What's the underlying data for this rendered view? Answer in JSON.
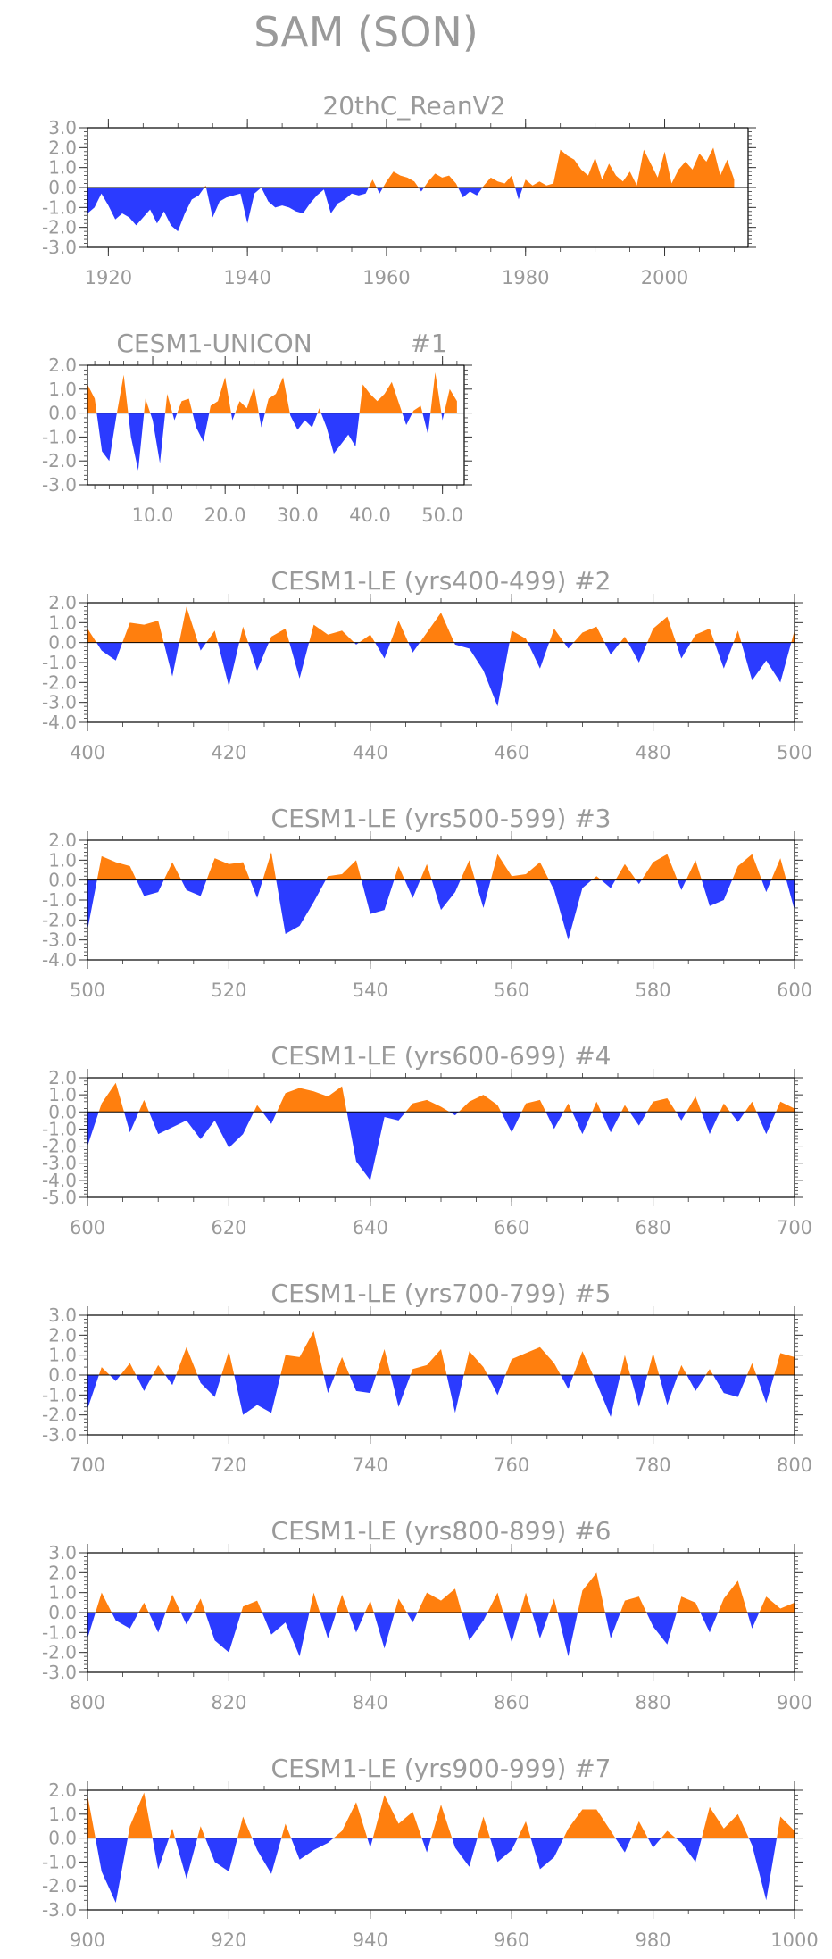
{
  "title": "SAM (SON)",
  "colors": {
    "positive": "#ff7f0e",
    "negative": "#2b3bff",
    "text": "#9a9a9a",
    "axis": "#333333",
    "frame": "#000000"
  },
  "chart_data": [
    {
      "type": "area",
      "title": "20thC_ReanV2",
      "xlim": [
        1917,
        2012
      ],
      "ylim": [
        -3.0,
        3.0
      ],
      "yticks": [
        "3.0",
        "2.0",
        "1.0",
        "0.0",
        "-1.0",
        "-2.0",
        "-3.0"
      ],
      "ytick_values": [
        3,
        2,
        1,
        0,
        -1,
        -2,
        -3
      ],
      "xticks": [
        "1920",
        "1940",
        "1960",
        "1980",
        "2000"
      ],
      "xtick_values": [
        1920,
        1940,
        1960,
        1980,
        2000
      ],
      "x": [
        1917,
        1918,
        1919,
        1920,
        1921,
        1922,
        1923,
        1924,
        1925,
        1926,
        1927,
        1928,
        1929,
        1930,
        1931,
        1932,
        1933,
        1934,
        1935,
        1936,
        1937,
        1938,
        1939,
        1940,
        1941,
        1942,
        1943,
        1944,
        1945,
        1946,
        1947,
        1948,
        1949,
        1950,
        1951,
        1952,
        1953,
        1954,
        1955,
        1956,
        1957,
        1958,
        1959,
        1960,
        1961,
        1962,
        1963,
        1964,
        1965,
        1966,
        1967,
        1968,
        1969,
        1970,
        1971,
        1972,
        1973,
        1974,
        1975,
        1976,
        1977,
        1978,
        1979,
        1980,
        1981,
        1982,
        1983,
        1984,
        1985,
        1986,
        1987,
        1988,
        1989,
        1990,
        1991,
        1992,
        1993,
        1994,
        1995,
        1996,
        1997,
        1998,
        1999,
        2000,
        2001,
        2002,
        2003,
        2004,
        2005,
        2006,
        2007,
        2008,
        2009,
        2010
      ],
      "y": [
        -1.3,
        -1.0,
        -0.3,
        -0.9,
        -1.6,
        -1.3,
        -1.5,
        -1.9,
        -1.5,
        -1.1,
        -1.8,
        -1.2,
        -1.9,
        -2.2,
        -1.3,
        -0.6,
        -0.4,
        0.1,
        -1.5,
        -0.7,
        -0.5,
        -0.4,
        -0.3,
        -1.8,
        -0.3,
        0.0,
        -0.7,
        -1.0,
        -0.9,
        -1.0,
        -1.2,
        -1.3,
        -0.8,
        -0.4,
        -0.1,
        -1.3,
        -0.8,
        -0.6,
        -0.3,
        -0.4,
        -0.3,
        0.4,
        -0.3,
        0.3,
        0.8,
        0.6,
        0.5,
        0.3,
        -0.2,
        0.3,
        0.7,
        0.5,
        0.6,
        0.2,
        -0.5,
        -0.2,
        -0.4,
        0.1,
        0.5,
        0.3,
        0.2,
        0.6,
        -0.6,
        0.4,
        0.1,
        0.3,
        0.1,
        0.2,
        1.9,
        1.6,
        1.4,
        0.9,
        0.6,
        1.5,
        0.4,
        1.2,
        0.6,
        0.3,
        0.8,
        0.1,
        1.9,
        1.2,
        0.5,
        1.8,
        0.2,
        0.9,
        1.3,
        0.9,
        1.7,
        1.3,
        2.0,
        0.6,
        1.4,
        0.4
      ]
    },
    {
      "type": "area",
      "title": "CESM1-UNICON",
      "run_label": "#1",
      "xlim": [
        1,
        53
      ],
      "ylim": [
        -3.0,
        2.0
      ],
      "yticks": [
        "2.0",
        "1.0",
        "0.0",
        "-1.0",
        "-2.0",
        "-3.0"
      ],
      "ytick_values": [
        2,
        1,
        0,
        -1,
        -2,
        -3
      ],
      "xticks": [
        "10.0",
        "20.0",
        "30.0",
        "40.0",
        "50.0"
      ],
      "xtick_values": [
        10,
        20,
        30,
        40,
        50
      ],
      "x": [
        1,
        2,
        3,
        4,
        5,
        6,
        7,
        8,
        9,
        10,
        11,
        12,
        13,
        14,
        15,
        16,
        17,
        18,
        19,
        20,
        21,
        22,
        23,
        24,
        25,
        26,
        27,
        28,
        29,
        30,
        31,
        32,
        33,
        34,
        35,
        36,
        37,
        38,
        39,
        40,
        41,
        42,
        43,
        44,
        45,
        46,
        47,
        48,
        49,
        50,
        51,
        52
      ],
      "y": [
        1.2,
        0.6,
        -1.6,
        -2.0,
        -0.1,
        1.6,
        -1.0,
        -2.4,
        0.6,
        -0.3,
        -2.1,
        0.8,
        -0.3,
        0.5,
        0.6,
        -0.6,
        -1.2,
        0.3,
        0.5,
        1.5,
        -0.3,
        0.5,
        0.2,
        1.1,
        -0.6,
        0.6,
        0.8,
        1.5,
        -0.1,
        -0.7,
        -0.3,
        -0.6,
        0.2,
        -0.6,
        -1.7,
        -1.3,
        -0.9,
        -1.4,
        1.2,
        0.8,
        0.5,
        0.8,
        1.3,
        0.4,
        -0.5,
        0.1,
        0.3,
        -0.9,
        1.7,
        -0.3,
        1.0,
        0.5
      ]
    },
    {
      "type": "area",
      "title": "CESM1-LE (yrs400-499)",
      "run_label": "#2",
      "xlim": [
        400,
        500
      ],
      "ylim": [
        -4.0,
        2.0
      ],
      "yticks": [
        "2.0",
        "1.0",
        "0.0",
        "-1.0",
        "-2.0",
        "-3.0",
        "-4.0"
      ],
      "ytick_values": [
        2,
        1,
        0,
        -1,
        -2,
        -3,
        -4
      ],
      "xticks": [
        "400",
        "420",
        "440",
        "460",
        "480",
        "500"
      ],
      "xtick_values": [
        400,
        420,
        440,
        460,
        480,
        500
      ],
      "x": [
        400,
        402,
        404,
        406,
        408,
        410,
        412,
        414,
        416,
        418,
        420,
        422,
        424,
        426,
        428,
        430,
        432,
        434,
        436,
        438,
        440,
        442,
        444,
        446,
        448,
        450,
        452,
        454,
        456,
        458,
        460,
        462,
        464,
        466,
        468,
        470,
        472,
        474,
        476,
        478,
        480,
        482,
        484,
        486,
        488,
        490,
        492,
        494,
        496,
        498,
        500
      ],
      "y": [
        0.7,
        -0.4,
        -0.9,
        1.0,
        0.9,
        1.1,
        -1.7,
        1.8,
        -0.4,
        0.6,
        -2.2,
        0.8,
        -1.4,
        0.3,
        0.7,
        -1.8,
        0.9,
        0.4,
        0.6,
        -0.1,
        0.4,
        -0.8,
        1.1,
        -0.5,
        0.5,
        1.5,
        -0.1,
        -0.3,
        -1.4,
        -3.2,
        0.6,
        0.2,
        -1.3,
        0.7,
        -0.3,
        0.5,
        0.8,
        -0.6,
        0.3,
        -1.0,
        0.7,
        1.3,
        -0.8,
        0.4,
        0.7,
        -1.3,
        0.6,
        -1.9,
        -0.9,
        -2.0,
        0.6
      ]
    },
    {
      "type": "area",
      "title": "CESM1-LE (yrs500-599)",
      "run_label": "#3",
      "xlim": [
        500,
        600
      ],
      "ylim": [
        -4.0,
        2.0
      ],
      "yticks": [
        "2.0",
        "1.0",
        "0.0",
        "-1.0",
        "-2.0",
        "-3.0",
        "-4.0"
      ],
      "ytick_values": [
        2,
        1,
        0,
        -1,
        -2,
        -3,
        -4
      ],
      "xticks": [
        "500",
        "520",
        "540",
        "560",
        "580",
        "600"
      ],
      "xtick_values": [
        500,
        520,
        540,
        560,
        580,
        600
      ],
      "x": [
        500,
        502,
        504,
        506,
        508,
        510,
        512,
        514,
        516,
        518,
        520,
        522,
        524,
        526,
        528,
        530,
        532,
        534,
        536,
        538,
        540,
        542,
        544,
        546,
        548,
        550,
        552,
        554,
        556,
        558,
        560,
        562,
        564,
        566,
        568,
        570,
        572,
        574,
        576,
        578,
        580,
        582,
        584,
        586,
        588,
        590,
        592,
        594,
        596,
        598,
        600
      ],
      "y": [
        -2.5,
        1.2,
        0.9,
        0.7,
        -0.8,
        -0.6,
        0.9,
        -0.5,
        -0.8,
        1.1,
        0.8,
        0.9,
        -0.9,
        1.4,
        -2.7,
        -2.3,
        -1.1,
        0.2,
        0.3,
        1.0,
        -1.7,
        -1.5,
        0.7,
        -0.9,
        0.8,
        -1.5,
        -0.6,
        1.0,
        -1.4,
        1.3,
        0.2,
        0.3,
        0.9,
        -0.5,
        -3.0,
        -0.4,
        0.2,
        -0.4,
        0.8,
        -0.2,
        0.9,
        1.3,
        -0.5,
        1.0,
        -1.3,
        -1.0,
        0.7,
        1.3,
        -0.6,
        1.1,
        -1.5
      ]
    },
    {
      "type": "area",
      "title": "CESM1-LE (yrs600-699)",
      "run_label": "#4",
      "xlim": [
        600,
        700
      ],
      "ylim": [
        -5.0,
        2.0
      ],
      "yticks": [
        "2.0",
        "1.0",
        "0.0",
        "-1.0",
        "-2.0",
        "-3.0",
        "-4.0",
        "-5.0"
      ],
      "ytick_values": [
        2,
        1,
        0,
        -1,
        -2,
        -3,
        -4,
        -5
      ],
      "xticks": [
        "600",
        "620",
        "640",
        "660",
        "680",
        "700"
      ],
      "xtick_values": [
        600,
        620,
        640,
        660,
        680,
        700
      ],
      "x": [
        600,
        602,
        604,
        606,
        608,
        610,
        612,
        614,
        616,
        618,
        620,
        622,
        624,
        626,
        628,
        630,
        632,
        634,
        636,
        638,
        640,
        642,
        644,
        646,
        648,
        650,
        652,
        654,
        656,
        658,
        660,
        662,
        664,
        666,
        668,
        670,
        672,
        674,
        676,
        678,
        680,
        682,
        684,
        686,
        688,
        690,
        692,
        694,
        696,
        698,
        700
      ],
      "y": [
        -2.0,
        0.5,
        1.7,
        -1.2,
        0.7,
        -1.3,
        -0.9,
        -0.5,
        -1.6,
        -0.5,
        -2.1,
        -1.3,
        0.4,
        -0.7,
        1.1,
        1.4,
        1.2,
        0.9,
        1.5,
        -2.9,
        -4.0,
        -0.3,
        -0.5,
        0.5,
        0.7,
        0.3,
        -0.2,
        0.6,
        1.0,
        0.4,
        -1.2,
        0.5,
        0.7,
        -1.0,
        0.5,
        -1.3,
        0.6,
        -1.2,
        0.4,
        -0.8,
        0.6,
        0.8,
        -0.5,
        0.9,
        -1.3,
        0.5,
        -0.6,
        0.6,
        -1.3,
        0.6,
        0.2
      ]
    },
    {
      "type": "area",
      "title": "CESM1-LE (yrs700-799)",
      "run_label": "#5",
      "xlim": [
        700,
        800
      ],
      "ylim": [
        -3.0,
        3.0
      ],
      "yticks": [
        "3.0",
        "2.0",
        "1.0",
        "0.0",
        "-1.0",
        "-2.0",
        "-3.0"
      ],
      "ytick_values": [
        3,
        2,
        1,
        0,
        -1,
        -2,
        -3
      ],
      "xticks": [
        "700",
        "720",
        "740",
        "760",
        "780",
        "800"
      ],
      "xtick_values": [
        700,
        720,
        740,
        760,
        780,
        800
      ],
      "x": [
        700,
        702,
        704,
        706,
        708,
        710,
        712,
        714,
        716,
        718,
        720,
        722,
        724,
        726,
        728,
        730,
        732,
        734,
        736,
        738,
        740,
        742,
        744,
        746,
        748,
        750,
        752,
        754,
        756,
        758,
        760,
        762,
        764,
        766,
        768,
        770,
        772,
        774,
        776,
        778,
        780,
        782,
        784,
        786,
        788,
        790,
        792,
        794,
        796,
        798,
        800
      ],
      "y": [
        -1.7,
        0.4,
        -0.3,
        0.6,
        -0.8,
        0.5,
        -0.5,
        1.4,
        -0.4,
        -1.1,
        1.2,
        -2.0,
        -1.5,
        -1.9,
        1.0,
        0.9,
        2.2,
        -0.9,
        0.9,
        -0.8,
        -0.9,
        1.3,
        -1.6,
        0.3,
        0.5,
        1.3,
        -1.9,
        1.2,
        0.4,
        -1.0,
        0.8,
        1.1,
        1.4,
        0.6,
        -0.7,
        1.2,
        -0.4,
        -2.1,
        1.0,
        -1.6,
        1.1,
        -1.5,
        0.5,
        -0.8,
        0.3,
        -0.9,
        -1.1,
        0.6,
        -1.4,
        1.1,
        0.9
      ]
    },
    {
      "type": "area",
      "title": "CESM1-LE (yrs800-899)",
      "run_label": "#6",
      "xlim": [
        800,
        900
      ],
      "ylim": [
        -3.0,
        3.0
      ],
      "yticks": [
        "3.0",
        "2.0",
        "1.0",
        "0.0",
        "-1.0",
        "-2.0",
        "-3.0"
      ],
      "ytick_values": [
        3,
        2,
        1,
        0,
        -1,
        -2,
        -3
      ],
      "xticks": [
        "800",
        "820",
        "840",
        "860",
        "880",
        "900"
      ],
      "xtick_values": [
        800,
        820,
        840,
        860,
        880,
        900
      ],
      "x": [
        800,
        802,
        804,
        806,
        808,
        810,
        812,
        814,
        816,
        818,
        820,
        822,
        824,
        826,
        828,
        830,
        832,
        834,
        836,
        838,
        840,
        842,
        844,
        846,
        848,
        850,
        852,
        854,
        856,
        858,
        860,
        862,
        864,
        866,
        868,
        870,
        872,
        874,
        876,
        878,
        880,
        882,
        884,
        886,
        888,
        890,
        892,
        894,
        896,
        898,
        900
      ],
      "y": [
        -1.3,
        1.0,
        -0.4,
        -0.8,
        0.5,
        -1.0,
        0.9,
        -0.6,
        0.7,
        -1.4,
        -2.0,
        0.3,
        0.6,
        -1.1,
        -0.5,
        -2.2,
        1.0,
        -1.3,
        0.9,
        -1.0,
        0.6,
        -1.8,
        0.7,
        -0.5,
        1.0,
        0.6,
        1.2,
        -1.4,
        -0.4,
        1.0,
        -1.5,
        1.0,
        -1.3,
        0.7,
        -2.2,
        1.1,
        2.0,
        -1.3,
        0.6,
        0.8,
        -0.7,
        -1.6,
        0.8,
        0.5,
        -1.0,
        0.7,
        1.6,
        -0.8,
        0.8,
        0.2,
        0.5
      ]
    },
    {
      "type": "area",
      "title": "CESM1-LE (yrs900-999)",
      "run_label": "#7",
      "xlim": [
        900,
        1000
      ],
      "ylim": [
        -3.0,
        2.0
      ],
      "yticks": [
        "2.0",
        "1.0",
        "0.0",
        "-1.0",
        "-2.0",
        "-3.0"
      ],
      "ytick_values": [
        2,
        1,
        0,
        -1,
        -2,
        -3
      ],
      "xticks": [
        "900",
        "920",
        "940",
        "960",
        "980",
        "1000"
      ],
      "xtick_values": [
        900,
        920,
        940,
        960,
        980,
        1000
      ],
      "x": [
        900,
        902,
        904,
        906,
        908,
        910,
        912,
        914,
        916,
        918,
        920,
        922,
        924,
        926,
        928,
        930,
        932,
        934,
        936,
        938,
        940,
        942,
        944,
        946,
        948,
        950,
        952,
        954,
        956,
        958,
        960,
        962,
        964,
        966,
        968,
        970,
        972,
        974,
        976,
        978,
        980,
        982,
        984,
        986,
        988,
        990,
        992,
        994,
        996,
        998,
        1000
      ],
      "y": [
        1.8,
        -1.4,
        -2.7,
        0.5,
        1.9,
        -1.3,
        0.4,
        -1.7,
        0.5,
        -1.0,
        -1.4,
        0.9,
        -0.5,
        -1.5,
        0.6,
        -0.9,
        -0.5,
        -0.2,
        0.3,
        1.5,
        -0.4,
        1.8,
        0.6,
        1.1,
        -0.6,
        1.4,
        -0.4,
        -1.2,
        0.9,
        -1.0,
        -0.5,
        0.7,
        -1.3,
        -0.8,
        0.4,
        1.2,
        1.2,
        0.3,
        -0.6,
        0.7,
        -0.4,
        0.3,
        -0.2,
        -1.0,
        1.3,
        0.4,
        1.0,
        -0.3,
        -2.6,
        0.9,
        0.3
      ]
    }
  ]
}
